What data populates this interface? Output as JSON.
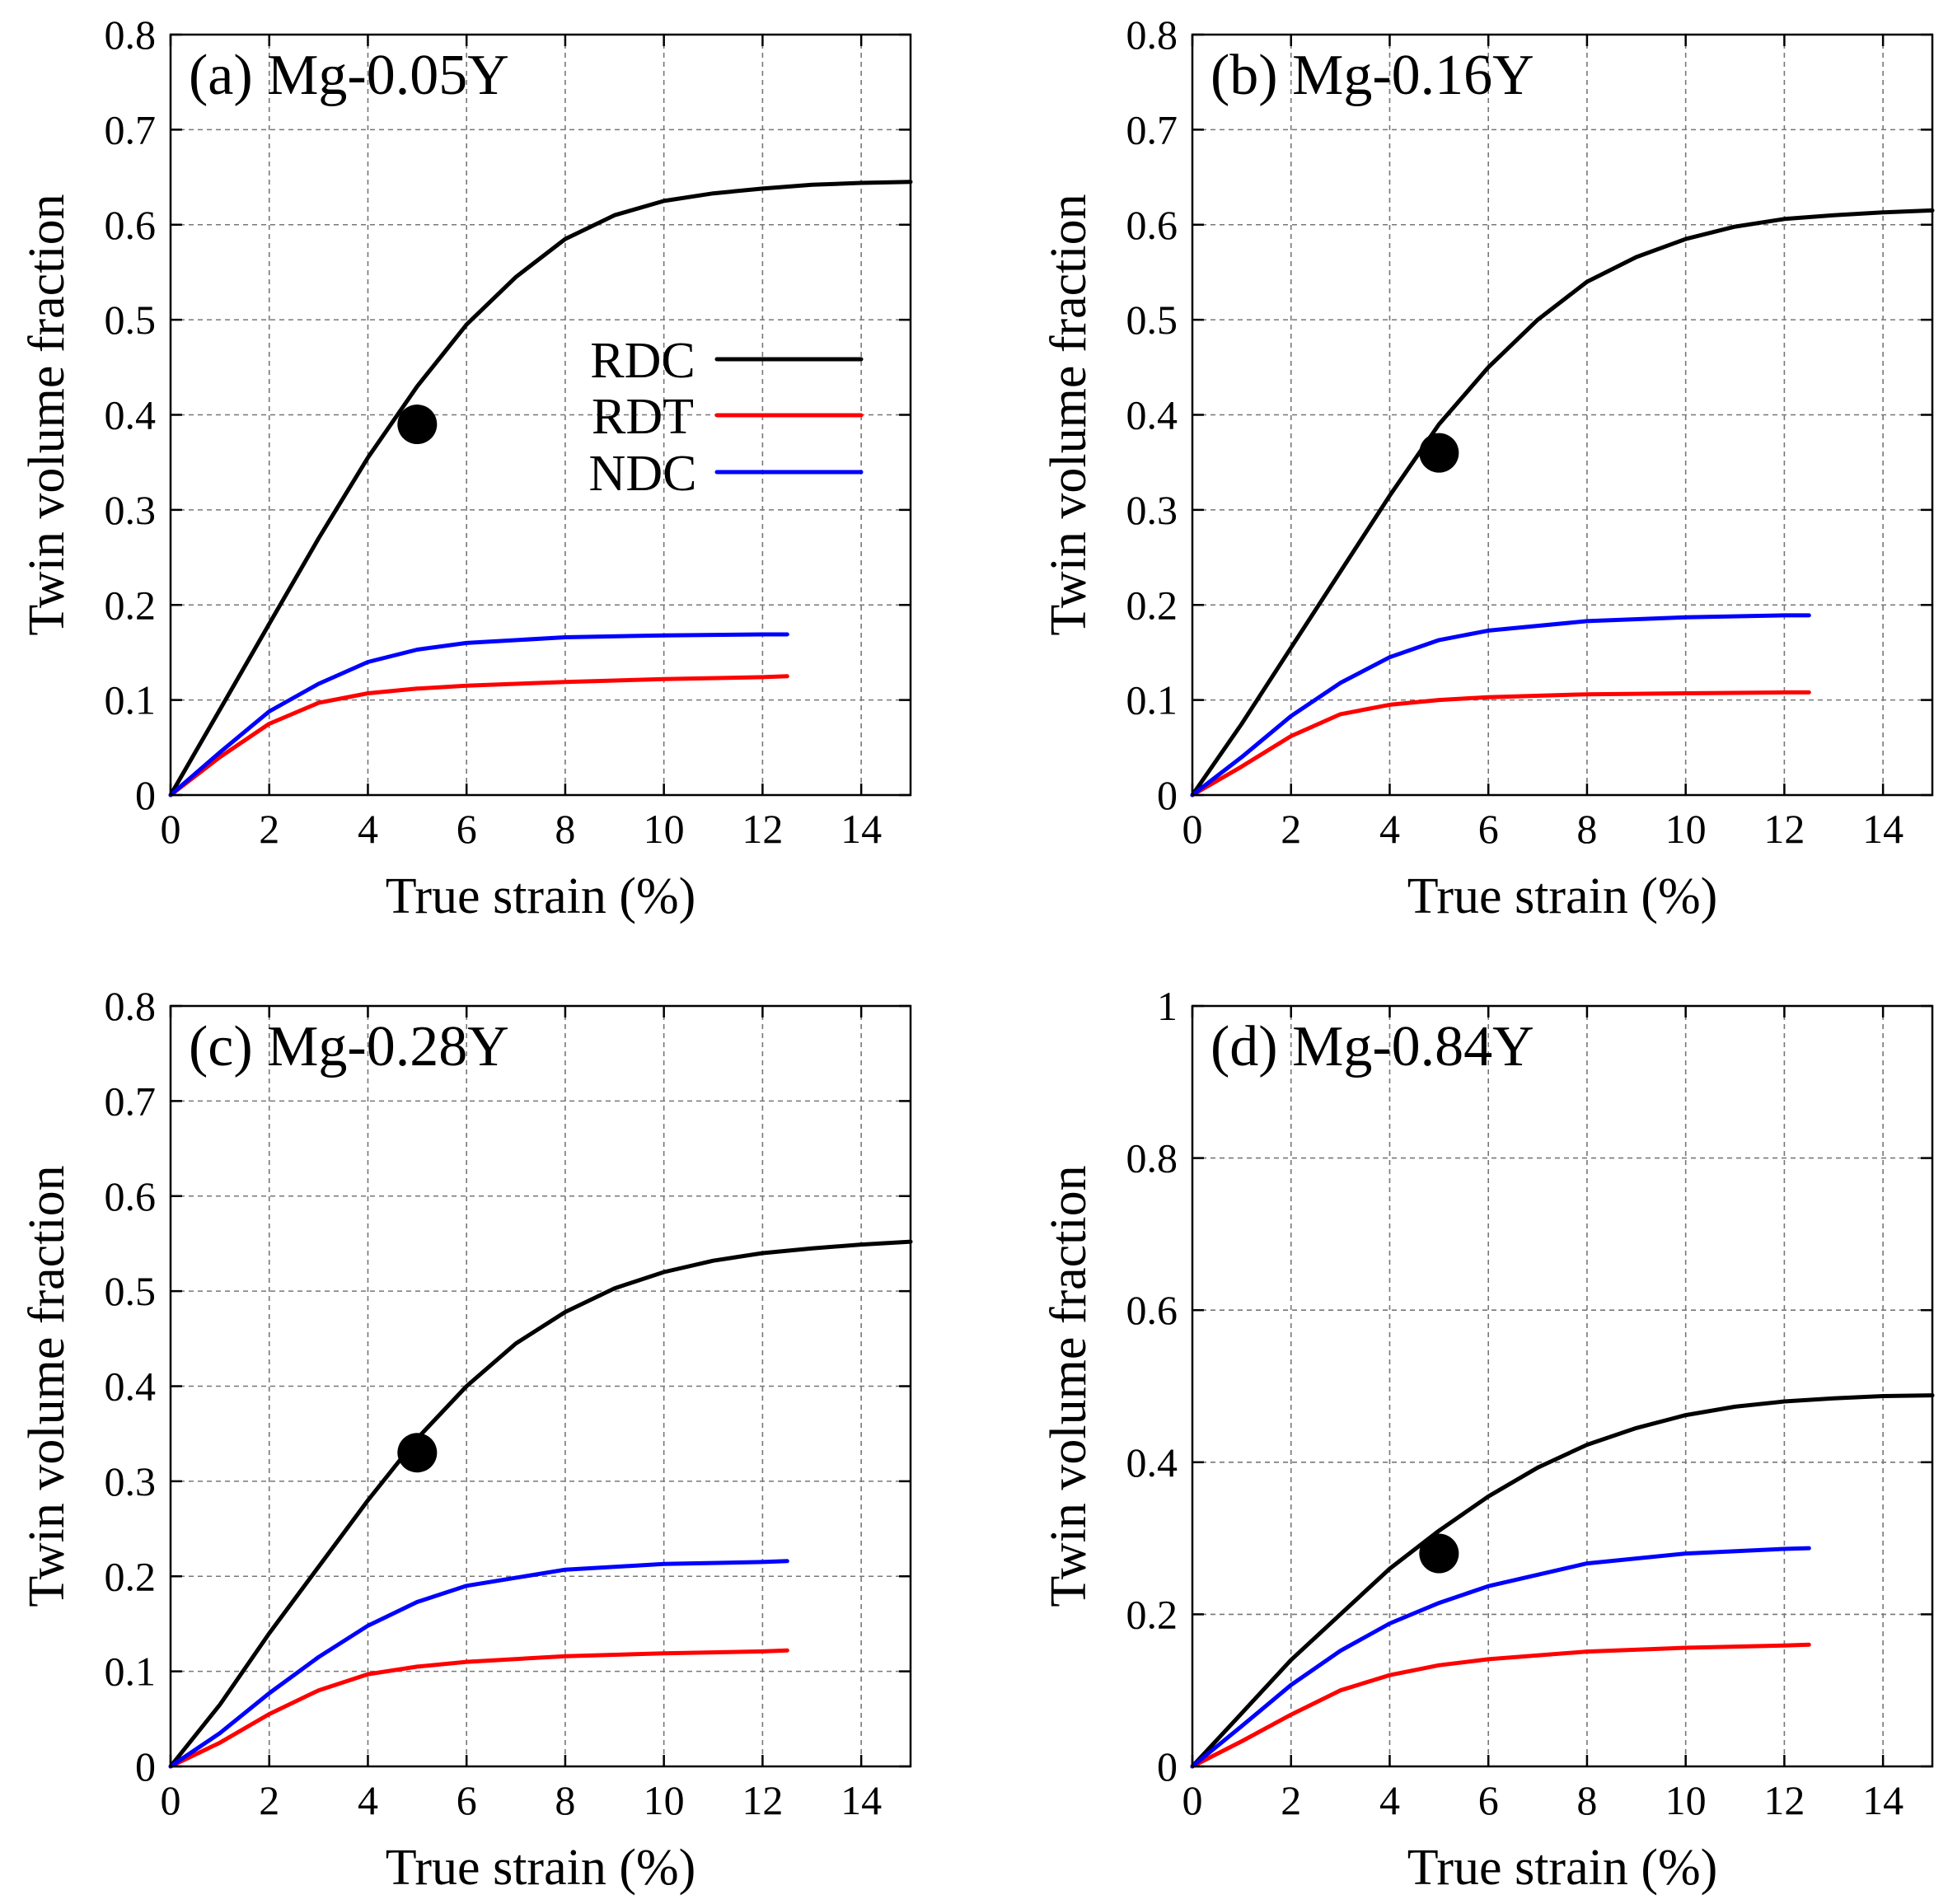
{
  "figure": {
    "legend": [
      {
        "name": "RDC",
        "color": "#000000"
      },
      {
        "name": "RDT",
        "color": "#ff0000"
      },
      {
        "name": "NDC",
        "color": "#0000ff"
      }
    ],
    "legend_panel": 0
  },
  "chart_data": [
    {
      "type": "line",
      "title": "(a) Mg-0.05Y",
      "xlabel": "True strain (%)",
      "ylabel": "Twin volume fraction",
      "xlim": [
        0,
        15
      ],
      "ylim": [
        0,
        0.8
      ],
      "xticks": [
        0,
        2,
        4,
        6,
        8,
        10,
        12,
        14
      ],
      "yticks": [
        0,
        0.1,
        0.2,
        0.3,
        0.4,
        0.5,
        0.6,
        0.7,
        0.8
      ],
      "ytick_labels": [
        "0",
        "0.1",
        "0.2",
        "0.3",
        "0.4",
        "0.5",
        "0.6",
        "0.7",
        "0.8"
      ],
      "grid": true,
      "legend_position": "center",
      "series": [
        {
          "name": "RDC",
          "color": "#000000",
          "x": [
            0,
            1,
            2,
            3,
            4,
            5,
            6,
            7,
            8,
            9,
            10,
            11,
            12,
            13,
            14,
            15
          ],
          "y": [
            0,
            0.09,
            0.18,
            0.27,
            0.355,
            0.43,
            0.495,
            0.545,
            0.585,
            0.61,
            0.625,
            0.633,
            0.638,
            0.642,
            0.644,
            0.645
          ]
        },
        {
          "name": "RDT",
          "color": "#ff0000",
          "x": [
            0,
            1,
            2,
            3,
            4,
            5,
            6,
            8,
            10,
            12,
            12.5
          ],
          "y": [
            0,
            0.04,
            0.075,
            0.097,
            0.107,
            0.112,
            0.115,
            0.119,
            0.122,
            0.124,
            0.125
          ]
        },
        {
          "name": "NDC",
          "color": "#0000ff",
          "x": [
            0,
            1,
            2,
            3,
            4,
            5,
            6,
            8,
            10,
            12,
            12.5
          ],
          "y": [
            0,
            0.045,
            0.088,
            0.117,
            0.14,
            0.153,
            0.16,
            0.166,
            0.168,
            0.169,
            0.169
          ]
        }
      ],
      "points": [
        {
          "x": 5,
          "y": 0.39
        }
      ]
    },
    {
      "type": "line",
      "title": "(b) Mg-0.16Y",
      "xlabel": "True strain (%)",
      "ylabel": "Twin volume fraction",
      "xlim": [
        0,
        15
      ],
      "ylim": [
        0,
        0.8
      ],
      "xticks": [
        0,
        2,
        4,
        6,
        8,
        10,
        12,
        14
      ],
      "yticks": [
        0,
        0.1,
        0.2,
        0.3,
        0.4,
        0.5,
        0.6,
        0.7,
        0.8
      ],
      "ytick_labels": [
        "0",
        "0.1",
        "0.2",
        "0.3",
        "0.4",
        "0.5",
        "0.6",
        "0.7",
        "0.8"
      ],
      "grid": true,
      "series": [
        {
          "name": "RDC",
          "color": "#000000",
          "x": [
            0,
            1,
            2,
            3,
            4,
            5,
            6,
            7,
            8,
            9,
            10,
            11,
            12,
            13,
            14,
            15
          ],
          "y": [
            0,
            0.075,
            0.155,
            0.235,
            0.315,
            0.39,
            0.45,
            0.5,
            0.54,
            0.566,
            0.585,
            0.598,
            0.606,
            0.61,
            0.613,
            0.615
          ]
        },
        {
          "name": "RDT",
          "color": "#ff0000",
          "x": [
            0,
            1,
            2,
            3,
            4,
            5,
            6,
            8,
            10,
            12,
            12.5
          ],
          "y": [
            0,
            0.03,
            0.062,
            0.085,
            0.095,
            0.1,
            0.103,
            0.106,
            0.107,
            0.108,
            0.108
          ]
        },
        {
          "name": "NDC",
          "color": "#0000ff",
          "x": [
            0,
            1,
            2,
            3,
            4,
            5,
            6,
            8,
            10,
            12,
            12.5
          ],
          "y": [
            0,
            0.04,
            0.083,
            0.118,
            0.145,
            0.163,
            0.173,
            0.183,
            0.187,
            0.189,
            0.189
          ]
        }
      ],
      "points": [
        {
          "x": 5,
          "y": 0.36
        }
      ]
    },
    {
      "type": "line",
      "title": "(c) Mg-0.28Y",
      "xlabel": "True strain (%)",
      "ylabel": "Twin volume fraction",
      "xlim": [
        0,
        15
      ],
      "ylim": [
        0,
        0.8
      ],
      "xticks": [
        0,
        2,
        4,
        6,
        8,
        10,
        12,
        14
      ],
      "yticks": [
        0,
        0.1,
        0.2,
        0.3,
        0.4,
        0.5,
        0.6,
        0.7,
        0.8
      ],
      "ytick_labels": [
        "0",
        "0.1",
        "0.2",
        "0.3",
        "0.4",
        "0.5",
        "0.6",
        "0.7",
        "0.8"
      ],
      "grid": true,
      "series": [
        {
          "name": "RDC",
          "color": "#000000",
          "x": [
            0,
            1,
            2,
            3,
            4,
            5,
            6,
            7,
            8,
            9,
            10,
            11,
            12,
            13,
            14,
            15
          ],
          "y": [
            0,
            0.065,
            0.14,
            0.21,
            0.28,
            0.345,
            0.4,
            0.445,
            0.478,
            0.503,
            0.52,
            0.532,
            0.54,
            0.545,
            0.549,
            0.552
          ]
        },
        {
          "name": "RDT",
          "color": "#ff0000",
          "x": [
            0,
            1,
            2,
            3,
            4,
            5,
            6,
            8,
            10,
            12,
            12.5
          ],
          "y": [
            0,
            0.025,
            0.055,
            0.08,
            0.097,
            0.105,
            0.11,
            0.116,
            0.119,
            0.121,
            0.122
          ]
        },
        {
          "name": "NDC",
          "color": "#0000ff",
          "x": [
            0,
            1,
            2,
            3,
            4,
            5,
            6,
            8,
            10,
            12,
            12.5
          ],
          "y": [
            0,
            0.035,
            0.077,
            0.115,
            0.148,
            0.173,
            0.19,
            0.207,
            0.213,
            0.215,
            0.216
          ]
        }
      ],
      "points": [
        {
          "x": 5,
          "y": 0.33
        }
      ]
    },
    {
      "type": "line",
      "title": "(d) Mg-0.84Y",
      "xlabel": "True strain (%)",
      "ylabel": "Twin volume fraction",
      "xlim": [
        0,
        15
      ],
      "ylim": [
        0,
        1
      ],
      "xticks": [
        0,
        2,
        4,
        6,
        8,
        10,
        12,
        14
      ],
      "yticks": [
        0,
        0.2,
        0.4,
        0.6,
        0.8,
        1
      ],
      "ytick_labels": [
        "0",
        "0.2",
        "0.4",
        "0.6",
        "0.8",
        "1"
      ],
      "grid": true,
      "series": [
        {
          "name": "RDC",
          "color": "#000000",
          "x": [
            0,
            1,
            2,
            3,
            4,
            5,
            6,
            7,
            8,
            9,
            10,
            11,
            12,
            13,
            14,
            15
          ],
          "y": [
            0,
            0.07,
            0.14,
            0.2,
            0.26,
            0.31,
            0.355,
            0.393,
            0.423,
            0.445,
            0.462,
            0.473,
            0.48,
            0.484,
            0.487,
            0.488
          ]
        },
        {
          "name": "RDT",
          "color": "#ff0000",
          "x": [
            0,
            1,
            2,
            3,
            4,
            5,
            6,
            8,
            10,
            12,
            12.5
          ],
          "y": [
            0,
            0.033,
            0.068,
            0.1,
            0.12,
            0.133,
            0.141,
            0.151,
            0.156,
            0.159,
            0.16
          ]
        },
        {
          "name": "NDC",
          "color": "#0000ff",
          "x": [
            0,
            1,
            2,
            3,
            4,
            5,
            6,
            8,
            10,
            12,
            12.5
          ],
          "y": [
            0,
            0.053,
            0.107,
            0.152,
            0.188,
            0.215,
            0.237,
            0.267,
            0.28,
            0.286,
            0.287
          ]
        }
      ],
      "points": [
        {
          "x": 5,
          "y": 0.28
        }
      ]
    }
  ]
}
